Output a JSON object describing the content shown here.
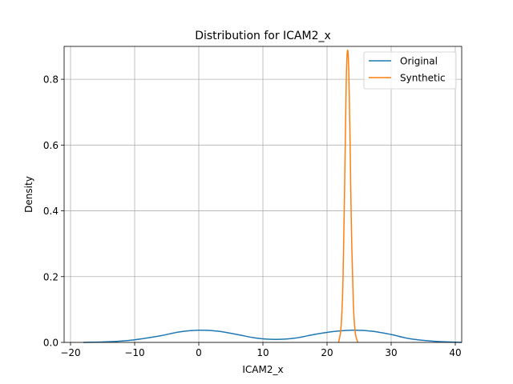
{
  "chart_data": {
    "type": "line",
    "title": "Distribution for ICAM2_x",
    "xlabel": "ICAM2_x",
    "ylabel": "Density",
    "xlim": [
      -21,
      41
    ],
    "ylim": [
      0,
      0.9
    ],
    "xticks": [
      -20,
      -10,
      0,
      10,
      20,
      30,
      40
    ],
    "xtick_labels": [
      "−20",
      "−10",
      "0",
      "10",
      "20",
      "30",
      "40"
    ],
    "yticks": [
      0.0,
      0.2,
      0.4,
      0.6,
      0.8
    ],
    "ytick_labels": [
      "0.0",
      "0.2",
      "0.4",
      "0.6",
      "0.8"
    ],
    "grid": true,
    "legend_position": "top-right",
    "series": [
      {
        "name": "Original",
        "color": "#1f77b4",
        "x": [
          -18,
          -14,
          -10,
          -6,
          -3,
          0,
          3,
          6,
          9,
          12,
          15,
          18,
          21,
          24,
          27,
          30,
          33,
          37,
          41
        ],
        "y": [
          0.0,
          0.002,
          0.008,
          0.02,
          0.032,
          0.037,
          0.034,
          0.024,
          0.013,
          0.009,
          0.013,
          0.024,
          0.033,
          0.037,
          0.034,
          0.024,
          0.011,
          0.003,
          0.0
        ]
      },
      {
        "name": "Synthetic",
        "color": "#ff7f0e",
        "x": [
          21.8,
          22.2,
          22.5,
          22.8,
          23.0,
          23.2,
          23.4,
          23.6,
          23.8,
          24.1,
          24.4,
          24.8
        ],
        "y": [
          0.0,
          0.05,
          0.2,
          0.55,
          0.8,
          0.888,
          0.82,
          0.6,
          0.35,
          0.12,
          0.03,
          0.0
        ]
      }
    ]
  }
}
